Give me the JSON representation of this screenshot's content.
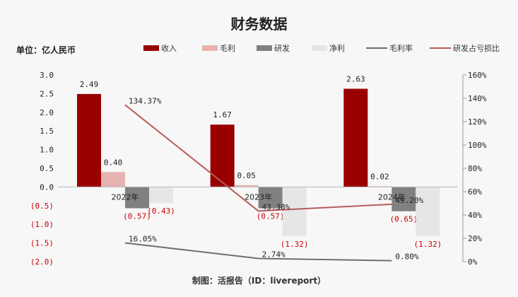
{
  "title": "财务数据",
  "unit": "单位：亿人民币",
  "source": "制图：活报告（ID：livereport）",
  "colors": {
    "revenue": "#990000",
    "gross_profit": "#e6b3b3",
    "rnd": "#808080",
    "net_profit": "#e6e6e6",
    "gross_margin_line": "#6e6e6e",
    "rnd_ratio_line": "#b85c5c",
    "negative_tick": "#cc0000"
  },
  "chart_data": {
    "type": "bar",
    "categories": [
      "2022年",
      "2023年",
      "2024年"
    ],
    "series": [
      {
        "name": "收入",
        "kind": "bar",
        "axis": "left",
        "values": [
          2.49,
          1.67,
          2.63
        ],
        "labels": [
          "2.49",
          "1.67",
          "2.63"
        ]
      },
      {
        "name": "毛利",
        "kind": "bar",
        "axis": "left",
        "values": [
          0.4,
          0.05,
          0.02
        ],
        "labels": [
          "0.40",
          "0.05",
          "0.02"
        ]
      },
      {
        "name": "研发",
        "kind": "bar",
        "axis": "left",
        "values": [
          -0.57,
          -0.57,
          -0.65
        ],
        "labels": [
          "(0.57)",
          "(0.57)",
          "(0.65)"
        ]
      },
      {
        "name": "净利",
        "kind": "bar",
        "axis": "left",
        "values": [
          -0.43,
          -1.32,
          -1.32
        ],
        "labels": [
          "(0.43)",
          "(1.32)",
          "(1.32)"
        ]
      },
      {
        "name": "毛利率",
        "kind": "line",
        "axis": "right",
        "values": [
          16.05,
          2.74,
          0.8
        ],
        "labels": [
          "16.05%",
          "2.74%",
          "0.80%"
        ]
      },
      {
        "name": "研发占亏损比",
        "kind": "line",
        "axis": "right",
        "values": [
          134.37,
          43.38,
          49.2
        ],
        "labels": [
          "134.37%",
          "43.38%",
          "49.20%"
        ]
      }
    ],
    "y_left": {
      "range": [
        -2.0,
        3.0
      ],
      "ticks": [
        "3.0",
        "2.5",
        "2.0",
        "1.5",
        "1.0",
        "0.5",
        "0.0",
        "(0.5)",
        "(1.0)",
        "(1.5)",
        "(2.0)"
      ]
    },
    "y_right": {
      "range": [
        0,
        160
      ],
      "ticks": [
        "160%",
        "140%",
        "120%",
        "100%",
        "80%",
        "60%",
        "40%",
        "20%",
        "0%"
      ]
    },
    "grid": false,
    "legend_position": "top-right"
  }
}
